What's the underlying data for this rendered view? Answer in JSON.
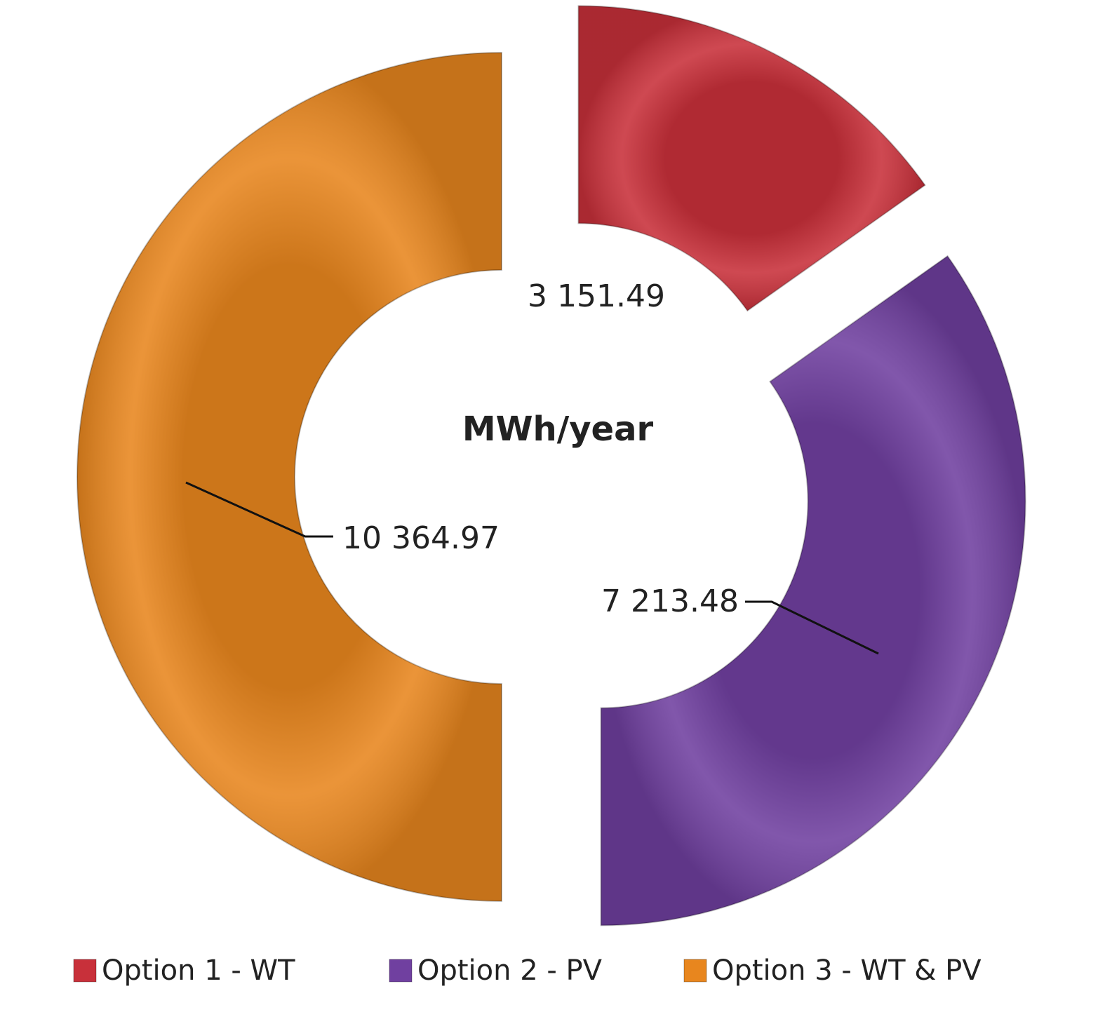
{
  "chart_data": {
    "type": "donut",
    "title": "MWh/year",
    "categories": [
      "Option 1 - WT",
      "Option 2 - PV",
      "Option 3 - WT & PV"
    ],
    "values": [
      3151.49,
      7213.48,
      10364.97
    ],
    "value_labels": [
      "3 151.49",
      "7 213.48",
      "10 364.97"
    ],
    "colors": [
      "#c8303a",
      "#7040a0",
      "#e8861e"
    ],
    "legend": "bottom"
  }
}
